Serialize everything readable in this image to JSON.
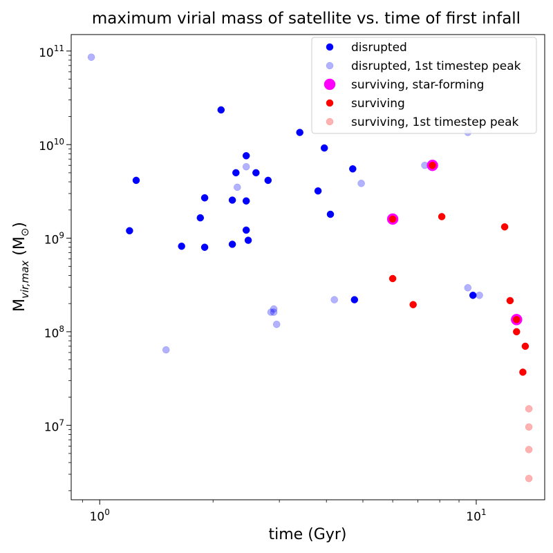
{
  "chart_data": {
    "type": "scatter",
    "title": "maximum virial mass of satellite vs. time of first infall",
    "xlabel": "time (Gyr)",
    "ylabel": "M_{vir,max} (M_⊙)",
    "xscale": "log",
    "yscale": "log",
    "xlim": [
      0.84,
      15.2
    ],
    "ylim": [
      1600000.0,
      150000000000.0
    ],
    "x_ticks": [
      {
        "value": 1,
        "label": "10",
        "exp": "0"
      },
      {
        "value": 10,
        "label": "10",
        "exp": "1"
      }
    ],
    "y_ticks": [
      {
        "value": 10000000.0,
        "label": "10",
        "exp": "7"
      },
      {
        "value": 100000000.0,
        "label": "10",
        "exp": "8"
      },
      {
        "value": 1000000000.0,
        "label": "10",
        "exp": "9"
      },
      {
        "value": 10000000000.0,
        "label": "10",
        "exp": "10"
      },
      {
        "value": 100000000000.0,
        "label": "10",
        "exp": "11"
      }
    ],
    "grid": false,
    "legend_position": "top-right",
    "series": [
      {
        "name": "disrupted",
        "color": "#0000ff",
        "alpha": 1.0,
        "marker_size": "small",
        "points": [
          [
            2.1,
            23500000000.0
          ],
          [
            3.4,
            13500000000.0
          ],
          [
            3.95,
            9200000000.0
          ],
          [
            2.45,
            7600000000.0
          ],
          [
            2.3,
            5000000000.0
          ],
          [
            2.6,
            5000000000.0
          ],
          [
            4.7,
            5500000000.0
          ],
          [
            2.8,
            4150000000.0
          ],
          [
            1.25,
            4150000000.0
          ],
          [
            1.9,
            2700000000.0
          ],
          [
            3.8,
            3200000000.0
          ],
          [
            2.25,
            2550000000.0
          ],
          [
            2.45,
            2500000000.0
          ],
          [
            4.1,
            1800000000.0
          ],
          [
            1.85,
            1650000000.0
          ],
          [
            1.2,
            1200000000.0
          ],
          [
            2.45,
            1220000000.0
          ],
          [
            2.48,
            950000000.0
          ],
          [
            2.25,
            860000000.0
          ],
          [
            1.65,
            820000000.0
          ],
          [
            1.9,
            800000000.0
          ],
          [
            4.75,
            220000000.0
          ],
          [
            9.8,
            245000000.0
          ]
        ]
      },
      {
        "name": "disrupted, 1st timestep peak",
        "color": "#0000ff",
        "alpha": 0.3,
        "marker_size": "small",
        "points": [
          [
            0.95,
            86000000000.0
          ],
          [
            9.5,
            13500000000.0
          ],
          [
            7.3,
            6000000000.0
          ],
          [
            2.45,
            5800000000.0
          ],
          [
            2.32,
            3500000000.0
          ],
          [
            4.95,
            3850000000.0
          ],
          [
            9.5,
            295000000.0
          ],
          [
            10.2,
            245000000.0
          ],
          [
            4.2,
            220000000.0
          ],
          [
            2.9,
            175000000.0
          ],
          [
            2.85,
            162000000.0
          ],
          [
            2.9,
            162000000.0
          ],
          [
            2.95,
            120000000.0
          ],
          [
            1.5,
            64000000.0
          ]
        ]
      },
      {
        "name": "surviving, star-forming",
        "color": "#ff00ff",
        "alpha": 1.0,
        "marker_size": "large",
        "points": [
          [
            7.65,
            6000000000.0
          ],
          [
            6.0,
            1600000000.0
          ],
          [
            12.8,
            135000000.0
          ]
        ]
      },
      {
        "name": "surviving",
        "color": "#ff0000",
        "alpha": 1.0,
        "marker_size": "small",
        "points": [
          [
            7.65,
            6000000000.0
          ],
          [
            6.0,
            1600000000.0
          ],
          [
            8.1,
            1700000000.0
          ],
          [
            11.9,
            1320000000.0
          ],
          [
            6.0,
            370000000.0
          ],
          [
            6.8,
            195000000.0
          ],
          [
            12.3,
            215000000.0
          ],
          [
            12.8,
            135000000.0
          ],
          [
            12.8,
            100000000.0
          ],
          [
            13.5,
            70000000.0
          ],
          [
            13.3,
            37000000.0
          ]
        ]
      },
      {
        "name": "surviving, 1st timestep peak",
        "color": "#ff0000",
        "alpha": 0.3,
        "marker_size": "small",
        "points": [
          [
            13.8,
            15000000.0
          ],
          [
            13.8,
            9600000.0
          ],
          [
            13.8,
            5500000.0
          ],
          [
            13.8,
            2700000.0
          ]
        ]
      }
    ]
  }
}
